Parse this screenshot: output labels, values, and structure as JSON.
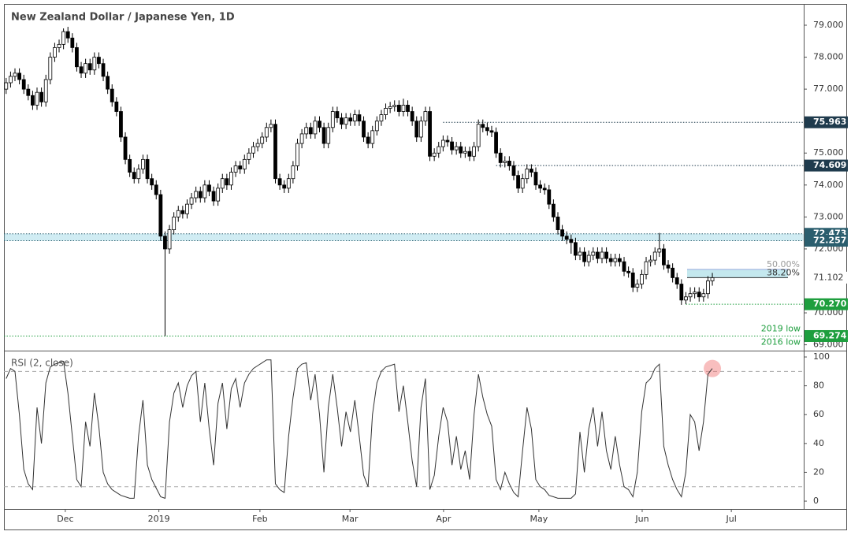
{
  "chart_data": {
    "type": "candlestick",
    "title": "New Zealand Dollar / Japanese Yen, 1D",
    "candles": [
      [
        77.0,
        77.35,
        76.85,
        77.2
      ],
      [
        77.2,
        77.55,
        77.05,
        77.4
      ],
      [
        77.4,
        77.65,
        77.25,
        77.5
      ],
      [
        77.5,
        77.65,
        77.15,
        77.3
      ],
      [
        77.3,
        77.45,
        76.85,
        77.0
      ],
      [
        77.0,
        77.15,
        76.65,
        76.8
      ],
      [
        76.8,
        76.95,
        76.35,
        76.5
      ],
      [
        76.5,
        77.05,
        76.35,
        76.9
      ],
      [
        76.9,
        77.05,
        76.45,
        76.6
      ],
      [
        76.6,
        77.45,
        76.45,
        77.3
      ],
      [
        77.3,
        78.15,
        77.15,
        78.0
      ],
      [
        78.0,
        78.45,
        77.85,
        78.3
      ],
      [
        78.3,
        78.55,
        78.15,
        78.4
      ],
      [
        78.4,
        78.9,
        78.25,
        78.8
      ],
      [
        78.8,
        78.95,
        78.45,
        78.6
      ],
      [
        78.6,
        78.75,
        78.15,
        78.3
      ],
      [
        78.3,
        78.45,
        77.55,
        77.7
      ],
      [
        77.7,
        77.85,
        77.35,
        77.5
      ],
      [
        77.5,
        77.95,
        77.35,
        77.8
      ],
      [
        77.8,
        77.95,
        77.45,
        77.6
      ],
      [
        77.6,
        78.15,
        77.45,
        78.0
      ],
      [
        78.0,
        78.15,
        77.65,
        77.8
      ],
      [
        77.8,
        77.95,
        77.25,
        77.4
      ],
      [
        77.4,
        77.55,
        76.85,
        77.0
      ],
      [
        77.0,
        77.15,
        76.45,
        76.6
      ],
      [
        76.6,
        76.75,
        76.15,
        76.3
      ],
      [
        76.3,
        76.45,
        75.35,
        75.5
      ],
      [
        75.5,
        75.65,
        74.65,
        74.8
      ],
      [
        74.8,
        74.95,
        74.25,
        74.4
      ],
      [
        74.4,
        74.55,
        74.05,
        74.2
      ],
      [
        74.2,
        74.65,
        74.05,
        74.5
      ],
      [
        74.5,
        74.95,
        74.35,
        74.8
      ],
      [
        74.8,
        74.95,
        74.05,
        74.2
      ],
      [
        74.2,
        74.35,
        73.85,
        74.0
      ],
      [
        74.0,
        74.15,
        73.55,
        73.7
      ],
      [
        73.7,
        73.85,
        72.25,
        72.4
      ],
      [
        72.4,
        72.55,
        69.274,
        72.0
      ],
      [
        72.0,
        72.75,
        71.85,
        72.6
      ],
      [
        72.6,
        73.15,
        72.45,
        73.0
      ],
      [
        73.0,
        73.35,
        72.85,
        73.2
      ],
      [
        73.2,
        73.35,
        72.95,
        73.1
      ],
      [
        73.1,
        73.55,
        72.95,
        73.4
      ],
      [
        73.4,
        73.75,
        73.25,
        73.6
      ],
      [
        73.6,
        73.95,
        73.45,
        73.8
      ],
      [
        73.8,
        73.95,
        73.45,
        73.6
      ],
      [
        73.6,
        74.15,
        73.45,
        74.0
      ],
      [
        74.0,
        74.15,
        73.65,
        73.8
      ],
      [
        73.8,
        73.95,
        73.35,
        73.5
      ],
      [
        73.5,
        74.05,
        73.35,
        73.9
      ],
      [
        73.9,
        74.35,
        73.75,
        74.2
      ],
      [
        74.2,
        74.35,
        73.85,
        74.0
      ],
      [
        74.0,
        74.55,
        73.85,
        74.4
      ],
      [
        74.4,
        74.75,
        74.25,
        74.6
      ],
      [
        74.6,
        74.75,
        74.35,
        74.5
      ],
      [
        74.5,
        74.95,
        74.35,
        74.8
      ],
      [
        74.8,
        75.15,
        74.65,
        75.0
      ],
      [
        75.0,
        75.35,
        74.85,
        75.2
      ],
      [
        75.2,
        75.45,
        75.05,
        75.3
      ],
      [
        75.3,
        75.65,
        75.15,
        75.5
      ],
      [
        75.5,
        75.95,
        75.35,
        75.8
      ],
      [
        75.8,
        76.05,
        75.65,
        75.9
      ],
      [
        75.9,
        76.05,
        74.05,
        74.2
      ],
      [
        74.2,
        74.35,
        73.85,
        74.0
      ],
      [
        74.0,
        74.15,
        73.75,
        73.9
      ],
      [
        73.9,
        74.35,
        73.75,
        74.2
      ],
      [
        74.2,
        74.75,
        74.05,
        74.6
      ],
      [
        74.6,
        75.45,
        74.45,
        75.3
      ],
      [
        75.3,
        75.75,
        75.15,
        75.6
      ],
      [
        75.6,
        75.95,
        75.45,
        75.8
      ],
      [
        75.8,
        75.95,
        75.45,
        75.6
      ],
      [
        75.6,
        76.15,
        75.45,
        76.0
      ],
      [
        76.0,
        76.15,
        75.65,
        75.8
      ],
      [
        75.8,
        75.95,
        75.15,
        75.3
      ],
      [
        75.3,
        75.95,
        75.15,
        75.8
      ],
      [
        75.8,
        76.45,
        75.65,
        76.3
      ],
      [
        76.3,
        76.45,
        75.95,
        76.1
      ],
      [
        76.1,
        76.25,
        75.75,
        75.9
      ],
      [
        75.9,
        76.25,
        75.75,
        76.1
      ],
      [
        76.1,
        76.25,
        75.85,
        76.0
      ],
      [
        76.0,
        76.35,
        75.85,
        76.2
      ],
      [
        76.2,
        76.35,
        75.85,
        76.0
      ],
      [
        76.0,
        76.15,
        75.35,
        75.5
      ],
      [
        75.5,
        75.65,
        75.15,
        75.3
      ],
      [
        75.3,
        75.85,
        75.15,
        75.7
      ],
      [
        75.7,
        76.15,
        75.55,
        76.0
      ],
      [
        76.0,
        76.35,
        75.85,
        76.2
      ],
      [
        76.2,
        76.55,
        76.05,
        76.4
      ],
      [
        76.4,
        76.6,
        76.25,
        76.45
      ],
      [
        76.45,
        76.65,
        76.3,
        76.5
      ],
      [
        76.5,
        76.65,
        76.15,
        76.3
      ],
      [
        76.3,
        76.7,
        76.15,
        76.5
      ],
      [
        76.5,
        76.65,
        76.15,
        76.3
      ],
      [
        76.3,
        76.45,
        75.85,
        76.0
      ],
      [
        76.0,
        76.15,
        75.35,
        75.5
      ],
      [
        75.5,
        76.15,
        75.35,
        76.0
      ],
      [
        76.0,
        76.45,
        75.85,
        76.3
      ],
      [
        76.3,
        76.45,
        74.75,
        74.9
      ],
      [
        74.9,
        75.15,
        74.75,
        75.0
      ],
      [
        75.0,
        75.35,
        74.85,
        75.2
      ],
      [
        75.2,
        75.55,
        75.05,
        75.4
      ],
      [
        75.4,
        75.55,
        75.2,
        75.35
      ],
      [
        75.35,
        75.5,
        74.95,
        75.1
      ],
      [
        75.1,
        75.35,
        74.95,
        75.2
      ],
      [
        75.2,
        75.35,
        74.85,
        75.0
      ],
      [
        75.0,
        75.2,
        74.85,
        75.05
      ],
      [
        75.05,
        75.2,
        74.75,
        74.9
      ],
      [
        74.9,
        75.35,
        74.75,
        75.2
      ],
      [
        75.2,
        76.05,
        75.05,
        75.9
      ],
      [
        75.9,
        76.05,
        75.65,
        75.8
      ],
      [
        75.8,
        75.95,
        75.55,
        75.7
      ],
      [
        75.7,
        75.85,
        75.5,
        75.65
      ],
      [
        75.65,
        75.8,
        74.85,
        75.0
      ],
      [
        75.0,
        75.15,
        74.55,
        74.7
      ],
      [
        74.7,
        74.9,
        74.55,
        74.75
      ],
      [
        74.75,
        74.9,
        74.45,
        74.6
      ],
      [
        74.6,
        74.75,
        74.15,
        74.3
      ],
      [
        74.3,
        74.45,
        73.75,
        73.9
      ],
      [
        73.9,
        74.35,
        73.75,
        74.2
      ],
      [
        74.2,
        74.65,
        74.05,
        74.5
      ],
      [
        74.5,
        74.65,
        74.25,
        74.4
      ],
      [
        74.4,
        74.55,
        73.85,
        74.0
      ],
      [
        74.0,
        74.15,
        73.75,
        73.9
      ],
      [
        73.9,
        74.05,
        73.7,
        73.85
      ],
      [
        73.85,
        74.0,
        73.25,
        73.4
      ],
      [
        73.4,
        73.55,
        72.85,
        73.0
      ],
      [
        73.0,
        73.15,
        72.45,
        72.6
      ],
      [
        72.6,
        72.75,
        72.25,
        72.4
      ],
      [
        72.4,
        72.55,
        72.15,
        72.3
      ],
      [
        72.3,
        72.45,
        71.85,
        72.2
      ],
      [
        72.2,
        72.35,
        71.65,
        71.8
      ],
      [
        71.8,
        72.05,
        71.65,
        71.9
      ],
      [
        71.9,
        72.05,
        71.45,
        71.6
      ],
      [
        71.6,
        71.95,
        71.45,
        71.8
      ],
      [
        71.8,
        72.05,
        71.65,
        71.9
      ],
      [
        71.9,
        72.05,
        71.55,
        71.7
      ],
      [
        71.7,
        72.05,
        71.55,
        71.9
      ],
      [
        71.9,
        72.05,
        71.55,
        71.7
      ],
      [
        71.7,
        71.85,
        71.45,
        71.6
      ],
      [
        71.6,
        71.85,
        71.45,
        71.7
      ],
      [
        71.7,
        71.85,
        71.45,
        71.6
      ],
      [
        71.6,
        71.75,
        71.15,
        71.3
      ],
      [
        71.3,
        71.45,
        71.1,
        71.25
      ],
      [
        71.25,
        71.4,
        70.65,
        70.8
      ],
      [
        70.8,
        71.05,
        70.65,
        70.9
      ],
      [
        70.9,
        71.35,
        70.75,
        71.2
      ],
      [
        71.2,
        71.75,
        71.05,
        71.6
      ],
      [
        71.6,
        71.8,
        71.45,
        71.65
      ],
      [
        71.65,
        72.05,
        71.5,
        71.9
      ],
      [
        71.9,
        72.5,
        71.75,
        72.0
      ],
      [
        72.0,
        72.15,
        71.35,
        71.5
      ],
      [
        71.5,
        71.65,
        71.25,
        71.4
      ],
      [
        71.4,
        71.55,
        70.95,
        71.1
      ],
      [
        71.1,
        71.25,
        70.75,
        70.9
      ],
      [
        70.9,
        71.05,
        70.25,
        70.4
      ],
      [
        70.4,
        70.65,
        70.27,
        70.5
      ],
      [
        70.5,
        70.8,
        70.35,
        70.6
      ],
      [
        70.6,
        70.8,
        70.45,
        70.65
      ],
      [
        70.65,
        70.8,
        70.35,
        70.5
      ],
      [
        70.5,
        70.75,
        70.35,
        70.6
      ],
      [
        70.6,
        71.15,
        70.45,
        71.0
      ],
      [
        71.0,
        71.25,
        70.85,
        71.1
      ]
    ],
    "up_color": "#ffffff",
    "down_color": "#000000",
    "xlim": [
      -0.5,
      180.7
    ],
    "xticks": [
      {
        "value": 13.4,
        "label": "Dec"
      },
      {
        "value": 34.6,
        "label": "2019"
      },
      {
        "value": 57.5,
        "label": "Feb"
      },
      {
        "value": 77.9,
        "label": "Mar"
      },
      {
        "value": 99.1,
        "label": "Apr"
      },
      {
        "value": 120.7,
        "label": "May"
      },
      {
        "value": 144.1,
        "label": "Jun"
      },
      {
        "value": 164.3,
        "label": "Jul"
      }
    ],
    "ylim": [
      68.867,
      79.666
    ],
    "yticks": [
      {
        "value": 69,
        "label": "69.000"
      },
      {
        "value": 70,
        "label": "70.000"
      },
      {
        "value": 71,
        "label": "71.000"
      },
      {
        "value": 72,
        "label": "72.000"
      },
      {
        "value": 73,
        "label": "73.000"
      },
      {
        "value": 74,
        "label": "74.000"
      },
      {
        "value": 75,
        "label": "75.000"
      },
      {
        "value": 76,
        "label": "76.000"
      },
      {
        "value": 77,
        "label": "77.000"
      },
      {
        "value": 78,
        "label": "78.000"
      },
      {
        "value": 79,
        "label": "79.000"
      }
    ],
    "levels": [
      {
        "value": 75.963,
        "label": "75.963",
        "color": "#1f3b4d"
      },
      {
        "value": 74.609,
        "label": "74.609",
        "color": "#1f3b4d"
      },
      {
        "value": 72.473,
        "label": "72.473",
        "color": "#2b5e6e"
      },
      {
        "value": 72.257,
        "label": "72.257",
        "color": "#2b5e6e"
      },
      {
        "value": 70.27,
        "label": "70.270",
        "color": "#1e9e3e"
      },
      {
        "value": 69.274,
        "label": "69.274",
        "color": "#1e9e3e"
      }
    ],
    "last_price": {
      "value": 71.102,
      "label": "71.102"
    },
    "fib": [
      {
        "label": "50.00%",
        "price": 71.36,
        "color": "#9a9a9a"
      },
      {
        "label": "38.20%",
        "price": 71.1,
        "color": "#333333"
      }
    ],
    "annotations": [
      "2019 low",
      "2016 low"
    ],
    "rsi": {
      "title": "RSI (2, close)",
      "color": "#333333",
      "values": [
        85,
        92,
        90,
        60,
        22,
        12,
        8,
        65,
        40,
        82,
        93,
        95,
        96,
        97,
        75,
        45,
        15,
        10,
        55,
        38,
        75,
        52,
        20,
        12,
        8,
        6,
        4,
        3,
        2,
        2,
        45,
        70,
        25,
        15,
        9,
        3,
        2,
        55,
        75,
        82,
        65,
        80,
        87,
        90,
        55,
        82,
        50,
        25,
        68,
        82,
        50,
        78,
        85,
        65,
        82,
        88,
        92,
        94,
        96,
        98,
        98,
        12,
        8,
        6,
        45,
        72,
        92,
        95,
        96,
        70,
        88,
        60,
        20,
        65,
        88,
        65,
        38,
        62,
        48,
        70,
        45,
        18,
        10,
        60,
        82,
        90,
        93,
        94,
        95,
        62,
        80,
        55,
        28,
        10,
        65,
        85,
        8,
        18,
        45,
        65,
        55,
        25,
        45,
        22,
        35,
        15,
        60,
        88,
        72,
        60,
        52,
        15,
        8,
        20,
        12,
        6,
        3,
        35,
        65,
        50,
        15,
        10,
        8,
        4,
        3,
        2,
        2,
        2,
        2,
        5,
        48,
        20,
        50,
        65,
        38,
        62,
        35,
        22,
        45,
        25,
        10,
        8,
        3,
        20,
        62,
        82,
        85,
        92,
        95,
        38,
        25,
        15,
        8,
        3,
        20,
        60,
        55,
        35,
        55,
        88,
        92
      ],
      "ylim": [
        -4.9,
        103.3
      ],
      "yticks": [
        0,
        20,
        40,
        60,
        80,
        100
      ],
      "bands": [
        90,
        10
      ]
    }
  }
}
